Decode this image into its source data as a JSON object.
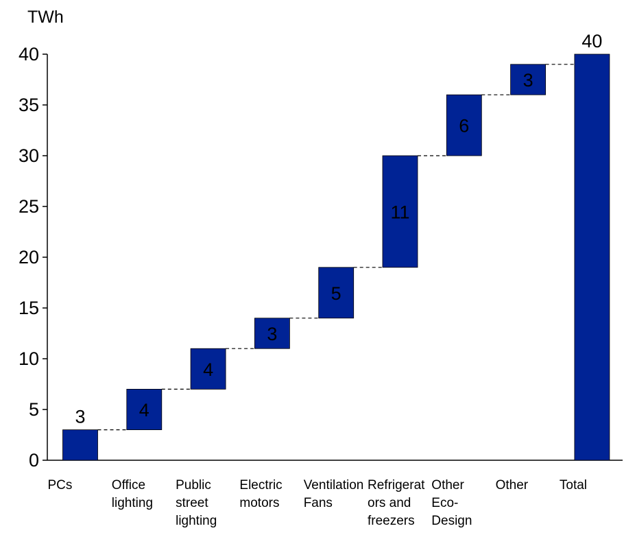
{
  "chart_data": {
    "type": "bar",
    "variant": "waterfall",
    "unit_label": "TWh",
    "title": "",
    "xlabel": "",
    "ylabel": "",
    "ylim": [
      0,
      40
    ],
    "yticks": [
      0,
      5,
      10,
      15,
      20,
      25,
      30,
      35,
      40
    ],
    "grid": false,
    "legend": "none",
    "bar_color": "#002395",
    "connector_color": "#000000",
    "categories": [
      {
        "label_lines": [
          "PCs"
        ],
        "value": 3,
        "label": "3",
        "total": false,
        "label_position": "above"
      },
      {
        "label_lines": [
          "Office",
          "lighting"
        ],
        "value": 4,
        "label": "4",
        "total": false,
        "label_position": "inside"
      },
      {
        "label_lines": [
          "Public",
          "street",
          "lighting"
        ],
        "value": 4,
        "label": "4",
        "total": false,
        "label_position": "inside"
      },
      {
        "label_lines": [
          "Electric",
          "motors"
        ],
        "value": 3,
        "label": "3",
        "total": false,
        "label_position": "inside"
      },
      {
        "label_lines": [
          "Ventilation",
          "Fans"
        ],
        "value": 5,
        "label": "5",
        "total": false,
        "label_position": "inside"
      },
      {
        "label_lines": [
          "Refrigerat",
          "ors and",
          "freezers"
        ],
        "value": 11,
        "label": "11",
        "total": false,
        "label_position": "inside"
      },
      {
        "label_lines": [
          "Other",
          "Eco-",
          "Design"
        ],
        "value": 6,
        "label": "6",
        "total": false,
        "label_position": "inside"
      },
      {
        "label_lines": [
          "Other"
        ],
        "value": 3,
        "label": "3",
        "total": false,
        "label_position": "inside"
      },
      {
        "label_lines": [
          "Total"
        ],
        "value": 40,
        "label": "40",
        "total": true,
        "label_position": "above"
      }
    ]
  }
}
